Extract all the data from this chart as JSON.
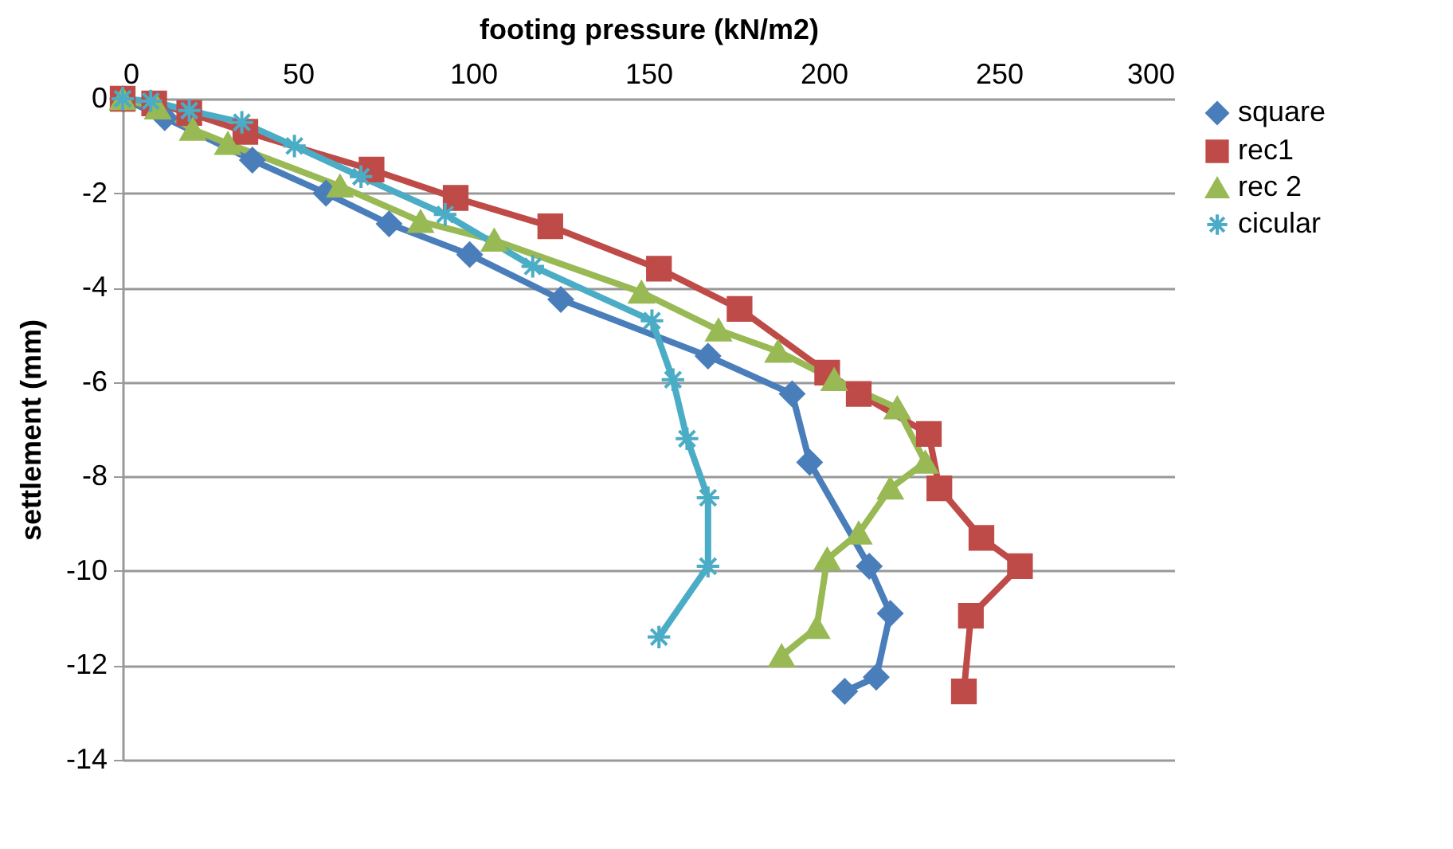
{
  "chart_data": {
    "type": "line",
    "xlabel": "footing pressure (kN/m2)",
    "ylabel": "settlement (mm)",
    "xlim": [
      0,
      300
    ],
    "xticks": [
      0,
      50,
      100,
      150,
      200,
      250,
      300
    ],
    "ylim": [
      -14,
      0
    ],
    "yticks": [
      -14,
      -12,
      -10,
      -8,
      -6,
      -4,
      -2,
      0
    ],
    "grid": "y",
    "legend": "right",
    "series": [
      {
        "name": "square",
        "color": "#4a7ebb",
        "marker": "diamond",
        "x": [
          0,
          12,
          37,
          58,
          76,
          99,
          125,
          167,
          191,
          196,
          213,
          219,
          215,
          206
        ],
        "values": [
          0,
          -0.4,
          -1.3,
          -2.0,
          -2.65,
          -3.3,
          -4.25,
          -5.45,
          -6.25,
          -7.7,
          -9.9,
          -10.9,
          -12.25,
          -12.55
        ]
      },
      {
        "name": "rec1",
        "color": "#be4b48",
        "marker": "square",
        "x": [
          0,
          9,
          19,
          35,
          71,
          95,
          122,
          153,
          176,
          201,
          210,
          230,
          233,
          245,
          256,
          242,
          240
        ],
        "values": [
          0,
          -0.1,
          -0.3,
          -0.7,
          -1.5,
          -2.1,
          -2.7,
          -3.6,
          -4.45,
          -5.8,
          -6.25,
          -7.1,
          -8.25,
          -9.3,
          -9.9,
          -10.95,
          -12.55
        ]
      },
      {
        "name": "rec 2",
        "color": "#98b954",
        "marker": "triangle",
        "x": [
          0,
          10,
          20,
          30,
          62,
          85,
          106,
          148,
          170,
          187,
          203,
          221,
          229,
          219,
          210,
          201,
          198,
          188
        ],
        "values": [
          0,
          -0.2,
          -0.65,
          -0.95,
          -1.85,
          -2.6,
          -3.0,
          -4.1,
          -4.9,
          -5.35,
          -5.95,
          -6.55,
          -7.7,
          -8.25,
          -9.2,
          -9.75,
          -11.2,
          -11.8
        ]
      },
      {
        "name": "cicular",
        "color": "#4bacc6",
        "marker": "cross",
        "x": [
          0,
          8,
          19,
          34,
          49,
          68,
          92,
          117,
          151,
          157,
          161,
          167,
          167,
          153
        ],
        "values": [
          0,
          -0.05,
          -0.25,
          -0.5,
          -1.0,
          -1.65,
          -2.45,
          -3.55,
          -4.7,
          -5.95,
          -7.2,
          -8.45,
          -9.9,
          -11.4
        ]
      }
    ]
  }
}
